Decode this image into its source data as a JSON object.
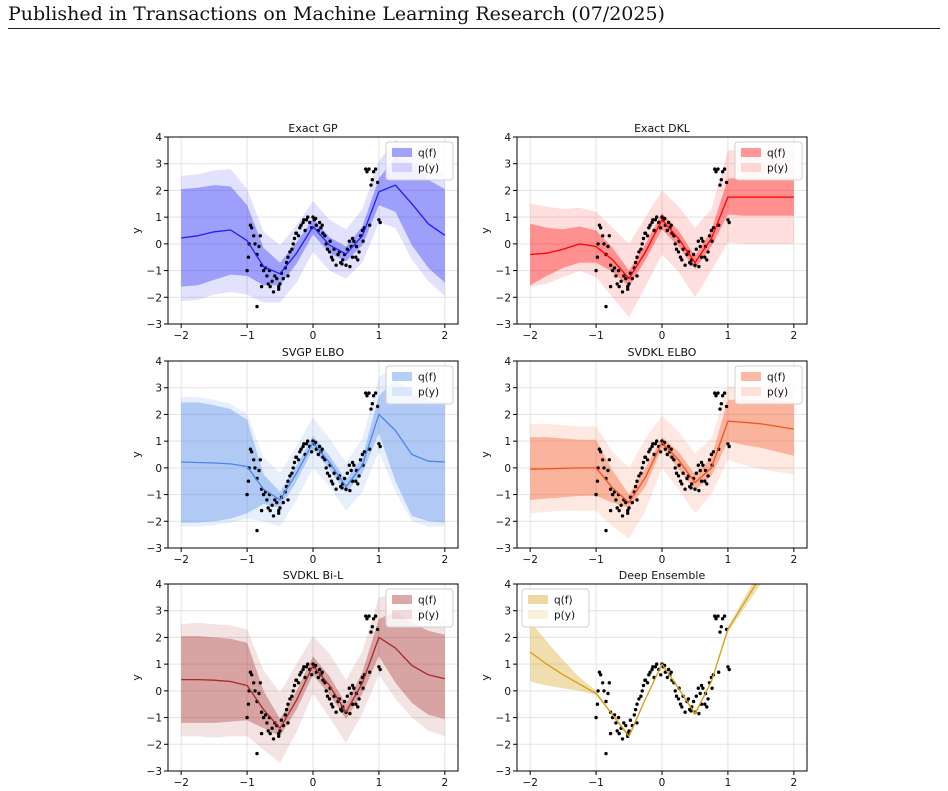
{
  "header": {
    "text": "Published in Transactions on Machine Learning Research (07/2025)"
  },
  "chart_data": [
    {
      "type": "line",
      "title": "Exact GP",
      "ylabel": "y",
      "xlim": [
        -2.2,
        2.2
      ],
      "ylim": [
        -3,
        4
      ],
      "xticks": [
        -2,
        -1,
        0,
        1,
        2
      ],
      "yticks": [
        -3,
        -2,
        -1,
        0,
        1,
        2,
        3,
        4
      ],
      "grid": true,
      "legend_position": "top-right",
      "color": "#1f1ff5",
      "series": [
        {
          "name": "q(f)"
        },
        {
          "name": "p(y)"
        }
      ],
      "x": [
        -2,
        -1.75,
        -1.5,
        -1.25,
        -1,
        -0.75,
        -0.5,
        -0.25,
        0,
        0.25,
        0.5,
        0.75,
        1,
        1.25,
        1.5,
        1.75,
        2
      ],
      "mean": [
        0.22,
        0.3,
        0.45,
        0.52,
        0.12,
        -0.85,
        -1.12,
        -0.35,
        0.65,
        -0.05,
        -0.38,
        0.3,
        1.95,
        2.2,
        1.5,
        0.75,
        0.32
      ],
      "q_lower": [
        -1.6,
        -1.55,
        -1.35,
        -1.15,
        -1.2,
        -1.55,
        -1.55,
        -0.75,
        0.35,
        -0.35,
        -0.65,
        -0.05,
        1.45,
        1.2,
        -0.05,
        -0.9,
        -1.45
      ],
      "q_upper": [
        2.05,
        2.1,
        2.2,
        2.15,
        1.45,
        -0.15,
        -0.7,
        0.05,
        0.95,
        0.25,
        -0.1,
        0.65,
        2.45,
        3.25,
        3.05,
        2.4,
        2.05
      ],
      "p_lower": [
        -2.15,
        -2.1,
        -1.9,
        -1.8,
        -1.9,
        -2.2,
        -2.2,
        -1.45,
        -0.3,
        -1.0,
        -1.3,
        -0.7,
        0.8,
        0.6,
        -0.6,
        -1.4,
        -1.95
      ],
      "p_upper": [
        2.55,
        2.6,
        2.75,
        2.8,
        2.05,
        0.45,
        -0.05,
        0.7,
        1.6,
        0.9,
        0.55,
        1.3,
        3.1,
        3.9,
        3.6,
        2.95,
        2.6
      ]
    },
    {
      "type": "line",
      "title": "Exact DKL",
      "ylabel": "y",
      "xlim": [
        -2.2,
        2.2
      ],
      "ylim": [
        -3,
        4
      ],
      "xticks": [
        -2,
        -1,
        0,
        1,
        2
      ],
      "yticks": [
        -3,
        -2,
        -1,
        0,
        1,
        2,
        3,
        4
      ],
      "grid": true,
      "legend_position": "top-right",
      "color": "#ff0000",
      "series": [
        {
          "name": "q(f)"
        },
        {
          "name": "p(y)"
        }
      ],
      "x": [
        -2,
        -1.75,
        -1.5,
        -1.25,
        -1,
        -0.75,
        -0.5,
        -0.25,
        0,
        0.25,
        0.5,
        0.75,
        1,
        1.25,
        1.5,
        1.75,
        2
      ],
      "mean": [
        -0.4,
        -0.35,
        -0.2,
        0.0,
        -0.1,
        -0.6,
        -1.3,
        -0.3,
        0.9,
        0.2,
        -0.7,
        0.2,
        1.75,
        1.75,
        1.75,
        1.75,
        1.75
      ],
      "q_lower": [
        -1.55,
        -1.2,
        -0.9,
        -0.7,
        -0.7,
        -1.05,
        -1.6,
        -0.6,
        0.55,
        -0.1,
        -0.95,
        -0.1,
        1.1,
        1.05,
        1.05,
        1.05,
        1.05
      ],
      "q_upper": [
        0.75,
        0.6,
        0.55,
        0.65,
        0.5,
        -0.15,
        -1.0,
        0.0,
        1.15,
        0.5,
        -0.45,
        0.5,
        2.45,
        2.45,
        2.45,
        2.45,
        2.45
      ],
      "p_lower": [
        -1.6,
        -1.5,
        -1.25,
        -1.0,
        -1.25,
        -2.0,
        -2.75,
        -1.6,
        -0.4,
        -1.05,
        -2.0,
        -1.0,
        0.05,
        0.0,
        0.0,
        0.0,
        0.0
      ],
      "p_upper": [
        1.5,
        1.4,
        1.3,
        1.35,
        1.2,
        0.6,
        0.0,
        1.0,
        2.0,
        1.4,
        0.6,
        1.3,
        3.5,
        3.5,
        3.5,
        3.5,
        3.5
      ]
    },
    {
      "type": "line",
      "title": "SVGP ELBO",
      "ylabel": "y",
      "xlim": [
        -2.2,
        2.2
      ],
      "ylim": [
        -3,
        4
      ],
      "xticks": [
        -2,
        -1,
        0,
        1,
        2
      ],
      "yticks": [
        -3,
        -2,
        -1,
        0,
        1,
        2,
        3,
        4
      ],
      "grid": true,
      "legend_position": "top-right",
      "color": "#4a86e8",
      "series": [
        {
          "name": "q(f)"
        },
        {
          "name": "p(y)"
        }
      ],
      "x": [
        -2,
        -1.75,
        -1.5,
        -1.25,
        -1,
        -0.75,
        -0.5,
        -0.25,
        0,
        0.25,
        0.5,
        0.75,
        1,
        1.25,
        1.5,
        1.75,
        2
      ],
      "mean": [
        0.22,
        0.2,
        0.18,
        0.15,
        0.05,
        -0.8,
        -1.2,
        -0.2,
        0.95,
        0.2,
        -0.7,
        0.1,
        2.0,
        1.4,
        0.5,
        0.25,
        0.22
      ],
      "q_lower": [
        -2.05,
        -2.05,
        -2.0,
        -1.9,
        -1.7,
        -1.35,
        -1.5,
        -0.5,
        0.7,
        -0.05,
        -0.95,
        -0.2,
        1.3,
        -0.5,
        -1.8,
        -2.0,
        -2.05
      ],
      "q_upper": [
        2.45,
        2.45,
        2.35,
        2.2,
        1.8,
        -0.25,
        -0.9,
        0.1,
        1.2,
        0.45,
        -0.45,
        0.4,
        2.7,
        3.3,
        2.8,
        2.5,
        2.45
      ],
      "p_lower": [
        -2.2,
        -2.2,
        -2.15,
        -2.05,
        -1.9,
        -2.0,
        -2.2,
        -1.2,
        0.0,
        -0.7,
        -1.6,
        -0.9,
        0.6,
        -0.9,
        -2.0,
        -2.2,
        -2.2
      ],
      "p_upper": [
        2.65,
        2.65,
        2.55,
        2.4,
        2.0,
        0.4,
        -0.2,
        0.8,
        1.9,
        1.1,
        0.2,
        1.1,
        3.4,
        3.8,
        3.0,
        2.7,
        2.65
      ]
    },
    {
      "type": "line",
      "title": "SVDKL ELBO",
      "ylabel": "y",
      "xlim": [
        -2.2,
        2.2
      ],
      "ylim": [
        -3,
        4
      ],
      "xticks": [
        -2,
        -1,
        0,
        1,
        2
      ],
      "yticks": [
        -3,
        -2,
        -1,
        0,
        1,
        2,
        3,
        4
      ],
      "grid": true,
      "legend_position": "top-right",
      "color": "#f4511e",
      "series": [
        {
          "name": "q(f)"
        },
        {
          "name": "p(y)"
        }
      ],
      "x": [
        -2,
        -1.75,
        -1.5,
        -1.25,
        -1,
        -0.75,
        -0.5,
        -0.25,
        0,
        0.25,
        0.5,
        0.75,
        1,
        1.25,
        1.5,
        1.75,
        2
      ],
      "mean": [
        -0.05,
        -0.04,
        -0.02,
        0.0,
        0.0,
        -0.75,
        -1.3,
        -0.35,
        0.95,
        0.3,
        -0.55,
        0.0,
        1.75,
        1.7,
        1.65,
        1.55,
        1.45
      ],
      "q_lower": [
        -1.2,
        -1.15,
        -1.1,
        -1.05,
        -1.05,
        -1.3,
        -1.5,
        -0.7,
        0.75,
        -0.05,
        -0.85,
        -0.3,
        1.0,
        0.85,
        0.75,
        0.6,
        0.45
      ],
      "q_upper": [
        1.15,
        1.15,
        1.1,
        1.05,
        1.05,
        -0.1,
        -1.0,
        0.0,
        1.15,
        0.6,
        -0.25,
        0.4,
        2.55,
        2.55,
        2.55,
        2.5,
        2.45
      ],
      "p_lower": [
        -1.7,
        -1.65,
        -1.6,
        -1.6,
        -1.6,
        -2.2,
        -2.65,
        -1.6,
        0.0,
        -0.8,
        -1.7,
        -1.0,
        0.3,
        0.1,
        -0.05,
        -0.15,
        -0.25
      ],
      "p_upper": [
        1.65,
        1.65,
        1.6,
        1.55,
        1.55,
        0.6,
        0.0,
        1.1,
        1.95,
        1.35,
        0.55,
        1.1,
        3.05,
        3.05,
        3.05,
        3.0,
        2.95
      ]
    },
    {
      "type": "line",
      "title": "SVDKL Bi-L",
      "ylabel": "y",
      "xlim": [
        -2.2,
        2.2
      ],
      "ylim": [
        -3,
        4
      ],
      "xticks": [
        -2,
        -1,
        0,
        1,
        2
      ],
      "yticks": [
        -3,
        -2,
        -1,
        0,
        1,
        2,
        3,
        4
      ],
      "grid": true,
      "legend_position": "top-right",
      "color": "#a52a2a",
      "series": [
        {
          "name": "q(f)"
        },
        {
          "name": "p(y)"
        }
      ],
      "x": [
        -2,
        -1.75,
        -1.5,
        -1.25,
        -1,
        -0.75,
        -0.5,
        -0.25,
        0,
        0.25,
        0.5,
        0.75,
        1,
        1.25,
        1.5,
        1.75,
        2
      ],
      "mean": [
        0.42,
        0.42,
        0.4,
        0.35,
        0.2,
        -0.7,
        -1.4,
        -0.35,
        0.95,
        0.2,
        -0.8,
        0.3,
        2.0,
        1.6,
        0.95,
        0.6,
        0.45
      ],
      "q_lower": [
        -1.2,
        -1.2,
        -1.2,
        -1.15,
        -1.1,
        -1.4,
        -1.7,
        -0.7,
        0.6,
        -0.15,
        -1.05,
        -0.1,
        1.3,
        0.3,
        -0.45,
        -0.9,
        -1.05
      ],
      "q_upper": [
        2.05,
        2.05,
        2.0,
        1.95,
        1.8,
        0.0,
        -1.05,
        0.0,
        1.3,
        0.55,
        -0.5,
        0.7,
        2.7,
        2.95,
        2.55,
        2.25,
        2.1
      ],
      "p_lower": [
        -1.7,
        -1.7,
        -1.75,
        -1.7,
        -1.7,
        -2.2,
        -2.7,
        -1.55,
        -0.1,
        -1.0,
        -1.95,
        -0.85,
        0.6,
        -0.3,
        -1.0,
        -1.5,
        -1.7
      ],
      "p_upper": [
        2.5,
        2.55,
        2.5,
        2.45,
        2.3,
        0.75,
        -0.05,
        1.0,
        2.05,
        1.4,
        0.4,
        1.5,
        3.5,
        3.6,
        3.15,
        2.8,
        2.6
      ]
    },
    {
      "type": "line",
      "title": "Deep Ensemble",
      "ylabel": "y",
      "xlim": [
        -2.2,
        2.2
      ],
      "ylim": [
        -3,
        4
      ],
      "xticks": [
        -2,
        -1,
        0,
        1,
        2
      ],
      "yticks": [
        -3,
        -2,
        -1,
        0,
        1,
        2,
        3,
        4
      ],
      "grid": true,
      "legend_position": "top-left",
      "color": "#d4a017",
      "series": [
        {
          "name": "q(f)"
        },
        {
          "name": "p(y)"
        }
      ],
      "x": [
        -2,
        -1.75,
        -1.5,
        -1.25,
        -1,
        -0.75,
        -0.5,
        -0.25,
        0,
        0.25,
        0.5,
        0.75,
        1,
        1.25,
        1.5
      ],
      "mean": [
        1.45,
        1.0,
        0.6,
        0.25,
        -0.1,
        -0.9,
        -1.7,
        -0.3,
        1.0,
        0.1,
        -0.85,
        0.35,
        2.3,
        3.3,
        4.3
      ],
      "q_lower": [
        0.35,
        0.2,
        0.1,
        0.0,
        -0.15,
        -0.95,
        -1.8,
        -0.35,
        0.95,
        0.05,
        -0.95,
        0.3,
        2.2,
        3.1,
        4.0
      ],
      "q_upper": [
        2.6,
        1.85,
        1.15,
        0.5,
        0.0,
        -0.85,
        -1.6,
        -0.25,
        1.05,
        0.15,
        -0.8,
        0.4,
        2.4,
        3.5,
        4.6
      ]
    }
  ],
  "observations": {
    "x": [
      -1.0,
      -0.98,
      -0.95,
      -0.93,
      -0.9,
      -0.88,
      -0.85,
      -0.82,
      -0.8,
      -0.78,
      -0.75,
      -0.72,
      -0.7,
      -0.68,
      -0.65,
      -0.62,
      -0.6,
      -0.58,
      -0.55,
      -0.52,
      -0.5,
      -0.48,
      -0.45,
      -0.42,
      -0.4,
      -0.38,
      -0.35,
      -0.32,
      -0.3,
      -0.28,
      -0.25,
      -0.22,
      -0.2,
      -0.18,
      -0.15,
      -0.12,
      -0.1,
      -0.08,
      -0.05,
      -0.02,
      0.0,
      0.02,
      0.05,
      0.08,
      0.1,
      0.12,
      0.15,
      0.18,
      0.2,
      0.22,
      0.25,
      0.28,
      0.3,
      0.32,
      0.35,
      0.38,
      0.4,
      0.42,
      0.45,
      0.48,
      0.5,
      0.52,
      0.55,
      0.58,
      0.6,
      0.62,
      0.65,
      0.68,
      0.7,
      0.72,
      0.75,
      0.78,
      0.8,
      0.82,
      0.85,
      0.88,
      0.9,
      0.92,
      0.95,
      0.98,
      1.0,
      1.02,
      -0.97,
      -0.85,
      -0.78,
      -0.66,
      -0.52,
      -0.38,
      -0.26,
      -0.14,
      0.04,
      0.14,
      0.26,
      0.44,
      0.56,
      0.66,
      0.76,
      0.86,
      0.6
    ],
    "y": [
      -1.0,
      -0.5,
      0.7,
      0.6,
      0.3,
      0.0,
      -0.4,
      -0.1,
      0.3,
      -0.8,
      -1.0,
      -0.9,
      -1.2,
      -1.5,
      -1.6,
      -1.4,
      -1.8,
      -1.2,
      -1.3,
      -1.7,
      -1.5,
      -1.1,
      -1.3,
      -0.9,
      -0.7,
      -0.5,
      -0.3,
      -0.2,
      0.0,
      0.2,
      0.4,
      0.3,
      0.6,
      0.7,
      0.8,
      0.5,
      0.9,
      1.0,
      0.8,
      0.6,
      1.0,
      0.9,
      0.7,
      0.5,
      0.8,
      0.6,
      0.4,
      0.3,
      0.0,
      -0.2,
      -0.3,
      -0.5,
      -0.6,
      -0.2,
      -0.8,
      -0.4,
      -0.3,
      -0.7,
      -0.6,
      -0.4,
      -0.8,
      -0.2,
      0.1,
      -0.1,
      0.2,
      0.1,
      -0.5,
      -0.6,
      -0.3,
      0.3,
      0.5,
      0.6,
      2.8,
      2.7,
      2.8,
      2.2,
      2.4,
      2.7,
      2.8,
      2.3,
      0.9,
      0.8,
      0.0,
      -2.35,
      -1.6,
      -1.0,
      -1.6,
      -1.2,
      0.4,
      0.9,
      0.95,
      0.7,
      0.1,
      -0.75,
      -0.85,
      -0.1,
      0.1,
      0.7,
      -0.5
    ]
  }
}
